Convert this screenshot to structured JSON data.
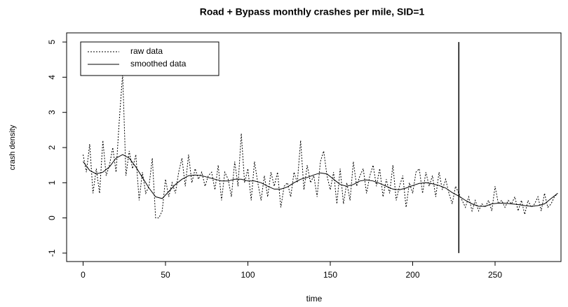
{
  "chart_data": {
    "type": "line",
    "title": "Road + Bypass monthly crashes per mile, SID=1",
    "x_label": "time",
    "y_label": "crash density",
    "xlim": [
      -10,
      290
    ],
    "ylim": [
      -1.24,
      5.26
    ],
    "xticks": [
      0,
      50,
      100,
      150,
      200,
      250
    ],
    "yticks": [
      -1,
      0,
      1,
      2,
      3,
      4,
      5
    ],
    "legend": "top-left",
    "vline": {
      "x": 228,
      "ymin": -1,
      "ymax": 5,
      "color": "#000000"
    },
    "series": [
      {
        "name": "raw data",
        "color": "#000000",
        "style": "dotted",
        "x": [
          0,
          2,
          4,
          6,
          8,
          10,
          12,
          14,
          16,
          18,
          20,
          22,
          24,
          26,
          28,
          30,
          32,
          34,
          36,
          38,
          40,
          42,
          44,
          46,
          48,
          50,
          52,
          54,
          56,
          58,
          60,
          62,
          64,
          66,
          68,
          70,
          72,
          74,
          76,
          78,
          80,
          82,
          84,
          86,
          88,
          90,
          92,
          94,
          96,
          98,
          100,
          102,
          104,
          106,
          108,
          110,
          112,
          114,
          116,
          118,
          120,
          122,
          124,
          126,
          128,
          130,
          132,
          134,
          136,
          138,
          140,
          142,
          144,
          146,
          148,
          150,
          152,
          154,
          156,
          158,
          160,
          162,
          164,
          166,
          168,
          170,
          172,
          174,
          176,
          178,
          180,
          182,
          184,
          186,
          188,
          190,
          192,
          194,
          196,
          198,
          200,
          202,
          204,
          206,
          208,
          210,
          212,
          214,
          216,
          218,
          220,
          222,
          224,
          226,
          228,
          230,
          232,
          234,
          236,
          238,
          240,
          242,
          244,
          246,
          248,
          250,
          252,
          254,
          256,
          258,
          260,
          262,
          264,
          266,
          268,
          270,
          272,
          274,
          276,
          278,
          280,
          282,
          284,
          286,
          288
        ],
        "values": [
          1.8,
          1.3,
          2.1,
          0.7,
          1.4,
          0.7,
          2.2,
          1.2,
          1.5,
          2.0,
          1.3,
          2.8,
          4.1,
          1.2,
          1.9,
          1.4,
          1.8,
          0.5,
          1.3,
          0.7,
          0.9,
          1.7,
          0.0,
          0.0,
          0.2,
          1.1,
          0.6,
          1.0,
          0.7,
          1.3,
          1.7,
          0.9,
          1.8,
          1.0,
          1.4,
          1.1,
          1.3,
          0.9,
          1.2,
          1.3,
          0.8,
          1.5,
          0.5,
          1.3,
          1.1,
          0.6,
          1.6,
          0.9,
          2.4,
          1.0,
          1.4,
          0.5,
          1.6,
          1.0,
          0.5,
          1.2,
          0.6,
          1.3,
          0.9,
          1.3,
          0.3,
          0.9,
          1.0,
          0.6,
          1.3,
          1.0,
          2.2,
          0.8,
          1.5,
          1.0,
          1.2,
          0.6,
          1.6,
          1.9,
          1.2,
          0.8,
          1.3,
          0.4,
          1.4,
          0.4,
          1.0,
          0.5,
          1.6,
          0.9,
          1.2,
          1.4,
          0.7,
          1.2,
          1.5,
          0.9,
          1.4,
          0.6,
          1.1,
          0.7,
          1.5,
          0.5,
          0.9,
          1.2,
          0.3,
          1.0,
          0.7,
          1.3,
          1.4,
          0.7,
          1.3,
          0.9,
          1.2,
          0.6,
          1.3,
          0.8,
          1.1,
          0.7,
          0.4,
          0.9,
          0.7,
          0.5,
          0.3,
          0.6,
          0.2,
          0.5,
          0.2,
          0.4,
          0.3,
          0.5,
          0.2,
          0.9,
          0.4,
          0.5,
          0.3,
          0.5,
          0.4,
          0.6,
          0.2,
          0.5,
          0.1,
          0.5,
          0.3,
          0.4,
          0.6,
          0.2,
          0.7,
          0.3,
          0.4,
          0.6,
          0.7
        ]
      },
      {
        "name": "smoothed data",
        "color": "#000000",
        "style": "solid",
        "x": [
          0,
          4,
          8,
          12,
          16,
          20,
          24,
          28,
          32,
          36,
          40,
          44,
          48,
          52,
          56,
          60,
          64,
          68,
          72,
          76,
          80,
          84,
          88,
          92,
          96,
          100,
          104,
          108,
          112,
          116,
          120,
          124,
          128,
          132,
          136,
          140,
          144,
          148,
          152,
          156,
          160,
          164,
          168,
          172,
          176,
          180,
          184,
          188,
          192,
          196,
          200,
          204,
          208,
          212,
          216,
          220,
          224,
          228,
          232,
          236,
          240,
          244,
          248,
          252,
          256,
          260,
          264,
          268,
          272,
          276,
          280,
          284,
          288
        ],
        "values": [
          1.6,
          1.35,
          1.25,
          1.3,
          1.45,
          1.7,
          1.8,
          1.7,
          1.45,
          1.15,
          0.85,
          0.6,
          0.55,
          0.75,
          0.95,
          1.1,
          1.2,
          1.22,
          1.2,
          1.15,
          1.1,
          1.05,
          1.05,
          1.1,
          1.1,
          1.05,
          1.05,
          1.0,
          0.9,
          0.82,
          0.82,
          0.88,
          1.0,
          1.1,
          1.15,
          1.22,
          1.28,
          1.25,
          1.1,
          0.95,
          0.9,
          0.95,
          1.05,
          1.08,
          1.05,
          0.98,
          0.9,
          0.82,
          0.8,
          0.85,
          0.92,
          0.98,
          1.0,
          0.97,
          0.92,
          0.85,
          0.72,
          0.62,
          0.5,
          0.4,
          0.33,
          0.33,
          0.4,
          0.42,
          0.42,
          0.4,
          0.38,
          0.35,
          0.33,
          0.35,
          0.4,
          0.55,
          0.7
        ]
      }
    ]
  }
}
